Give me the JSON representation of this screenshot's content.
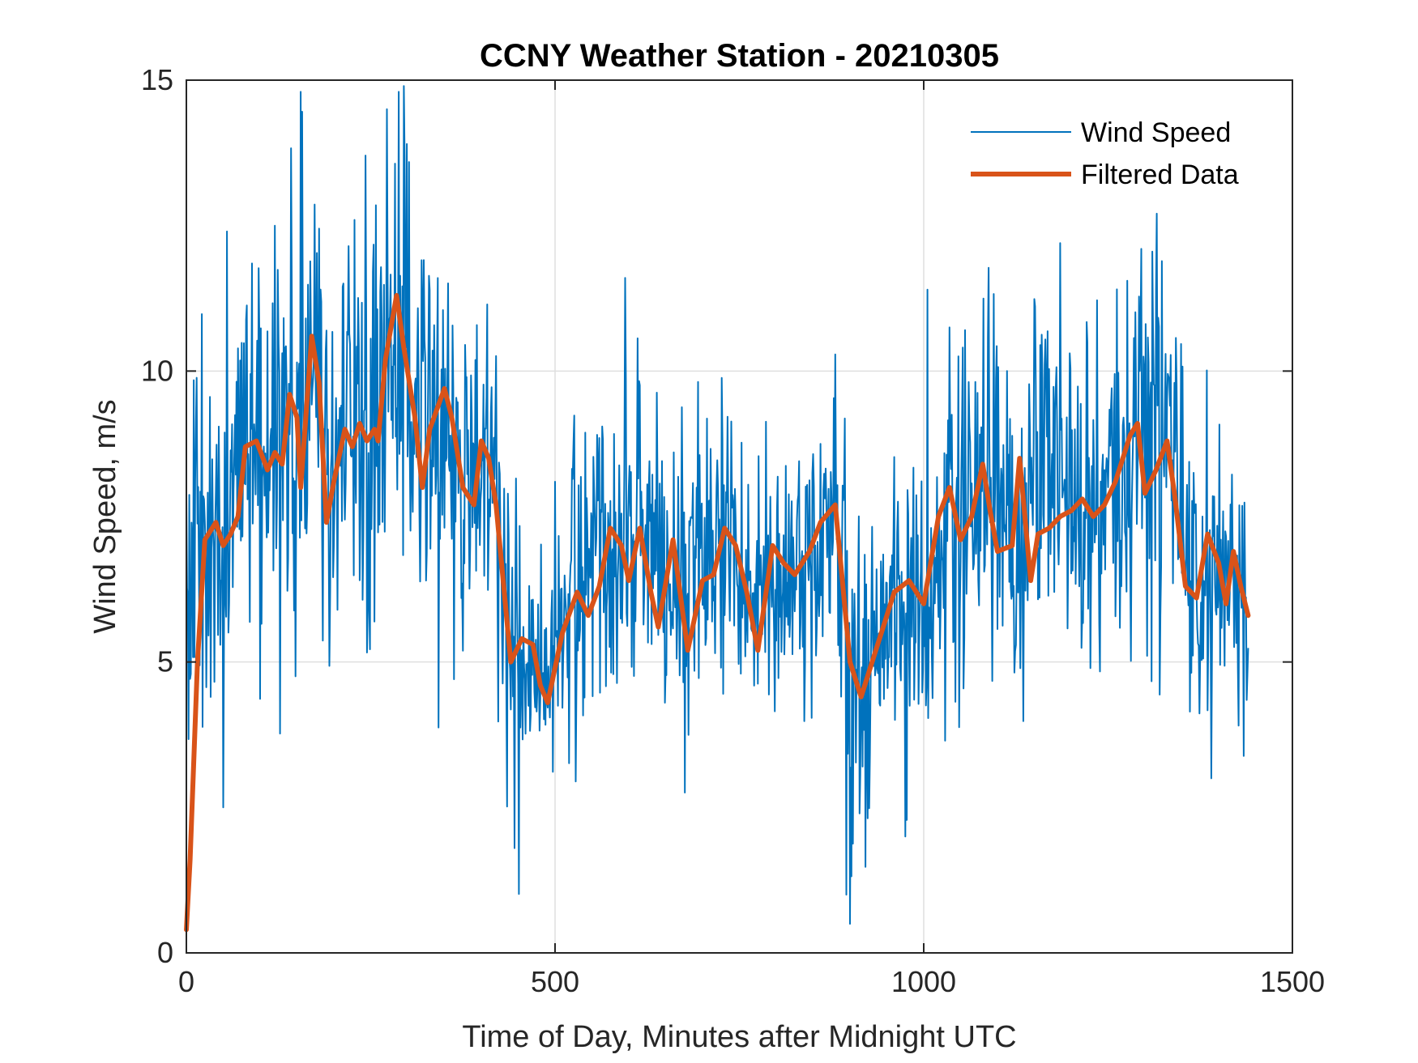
{
  "chart_data": {
    "type": "line",
    "title": "CCNY Weather Station - 20210305",
    "xlabel": "Time of Day, Minutes after Midnight UTC",
    "ylabel": "Wind Speed, m/s",
    "xlim": [
      0,
      1500
    ],
    "ylim": [
      0,
      15
    ],
    "xticks": [
      0,
      500,
      1000,
      1500
    ],
    "yticks": [
      0,
      5,
      10,
      15
    ],
    "xtick_labels": [
      "0",
      "500",
      "1000",
      "1500"
    ],
    "ytick_labels": [
      "0",
      "5",
      "10",
      "15"
    ],
    "grid": true,
    "legend": {
      "placement": "top-right",
      "entries": [
        "Wind Speed",
        "Filtered Data"
      ]
    },
    "colors": {
      "wind": "#0072BD",
      "filtered": "#D95319",
      "axis": "#262626",
      "grid": "#DFDFDF"
    },
    "series": [
      {
        "name": "Wind Speed",
        "note": "raw 1-minute samples, 0-1440 min; plotted as a noisy series whose local mean follows the envelope below",
        "envelope_x": [
          0,
          20,
          50,
          80,
          110,
          130,
          155,
          170,
          195,
          225,
          260,
          285,
          320,
          350,
          380,
          420,
          450,
          480,
          500,
          560,
          620,
          650,
          700,
          750,
          800,
          850,
          880,
          900,
          920,
          960,
          1000,
          1050,
          1080,
          1120,
          1150,
          1200,
          1250,
          1290,
          1340,
          1370,
          1400,
          1440
        ],
        "envelope_mean": [
          6.5,
          7.3,
          7.2,
          8.7,
          8.5,
          9.5,
          8.8,
          10.5,
          7.9,
          9.0,
          8.9,
          11.3,
          9.0,
          9.7,
          7.8,
          7.7,
          5.2,
          4.5,
          5.5,
          7.2,
          7.2,
          6.0,
          7.2,
          6.4,
          6.8,
          6.8,
          7.6,
          5.0,
          4.6,
          6.1,
          6.1,
          7.6,
          8.2,
          6.9,
          8.3,
          7.5,
          7.8,
          9.0,
          8.6,
          6.2,
          6.9,
          5.9
        ],
        "envelope_noise_sd": [
          2.0,
          1.6,
          1.5,
          1.5,
          1.6,
          1.8,
          2.2,
          2.2,
          1.8,
          1.9,
          2.2,
          2.1,
          1.7,
          1.6,
          1.4,
          1.4,
          1.3,
          1.2,
          1.3,
          1.3,
          1.4,
          1.3,
          1.3,
          1.2,
          1.2,
          1.3,
          1.3,
          1.4,
          1.4,
          1.3,
          1.4,
          1.5,
          1.5,
          1.5,
          1.5,
          1.5,
          1.5,
          1.6,
          1.5,
          1.4,
          1.3,
          1.3
        ],
        "spikes": [
          [
            155,
            14.8
          ],
          [
            288,
            14.8
          ],
          [
            295,
            14.9
          ],
          [
            272,
            14.5
          ],
          [
            55,
            12.4
          ],
          [
            120,
            12.5
          ],
          [
            595,
            11.6
          ],
          [
            1005,
            11.4
          ],
          [
            1185,
            12.2
          ],
          [
            1295,
            12.1
          ],
          [
            445,
            1.8
          ],
          [
            895,
            1.0
          ],
          [
            900,
            0.5
          ],
          [
            975,
            2.0
          ],
          [
            1390,
            3.0
          ],
          [
            50,
            2.5
          ]
        ],
        "xmax": 1440
      },
      {
        "name": "Filtered Data",
        "x": [
          0,
          5,
          15,
          25,
          30,
          40,
          50,
          60,
          70,
          80,
          95,
          110,
          120,
          130,
          140,
          150,
          155,
          170,
          180,
          190,
          200,
          215,
          225,
          235,
          245,
          255,
          260,
          270,
          285,
          295,
          310,
          320,
          330,
          350,
          360,
          375,
          390,
          400,
          410,
          420,
          440,
          455,
          470,
          480,
          490,
          510,
          530,
          545,
          560,
          575,
          590,
          600,
          615,
          630,
          640,
          660,
          680,
          700,
          715,
          730,
          745,
          760,
          775,
          795,
          810,
          825,
          845,
          860,
          880,
          900,
          915,
          930,
          945,
          960,
          980,
          1000,
          1020,
          1035,
          1050,
          1065,
          1080,
          1090,
          1100,
          1120,
          1130,
          1145,
          1155,
          1170,
          1185,
          1200,
          1215,
          1230,
          1245,
          1260,
          1280,
          1290,
          1300,
          1315,
          1330,
          1340,
          1355,
          1370,
          1385,
          1400,
          1410,
          1420,
          1430,
          1440
        ],
        "y": [
          0.4,
          1.6,
          5.0,
          7.1,
          7.2,
          7.4,
          7.0,
          7.2,
          7.5,
          8.7,
          8.8,
          8.3,
          8.6,
          8.4,
          9.6,
          9.2,
          8.0,
          10.6,
          9.8,
          7.4,
          8.1,
          9.0,
          8.7,
          9.1,
          8.8,
          9.0,
          8.8,
          10.2,
          11.3,
          10.4,
          9.2,
          8.0,
          9.0,
          9.7,
          9.2,
          8.0,
          7.7,
          8.8,
          8.5,
          7.7,
          5.0,
          5.4,
          5.3,
          4.6,
          4.3,
          5.5,
          6.2,
          5.8,
          6.3,
          7.3,
          7.0,
          6.4,
          7.3,
          6.2,
          5.6,
          7.1,
          5.2,
          6.4,
          6.5,
          7.3,
          7.0,
          6.2,
          5.2,
          7.0,
          6.7,
          6.5,
          6.9,
          7.4,
          7.7,
          5.0,
          4.4,
          5.0,
          5.6,
          6.2,
          6.4,
          6.0,
          7.5,
          8.0,
          7.1,
          7.5,
          8.4,
          7.6,
          6.9,
          7.0,
          8.5,
          6.4,
          7.2,
          7.3,
          7.5,
          7.6,
          7.8,
          7.5,
          7.7,
          8.1,
          8.9,
          9.1,
          7.9,
          8.3,
          8.8,
          7.9,
          6.3,
          6.1,
          7.2,
          6.7,
          6.0,
          6.9,
          6.3,
          5.8
        ]
      }
    ]
  }
}
